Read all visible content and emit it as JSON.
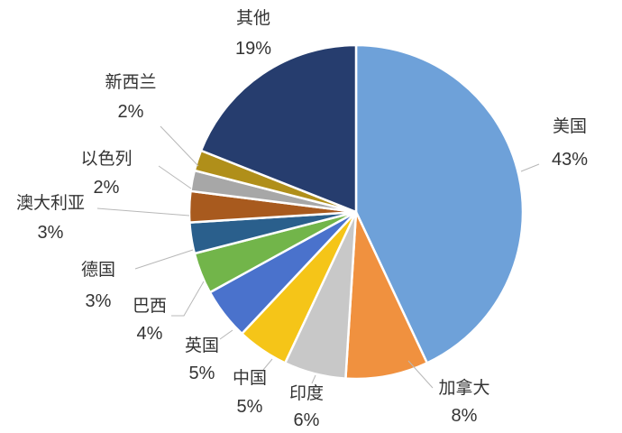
{
  "chart_data": {
    "type": "pie",
    "title": "",
    "slices": [
      {
        "label": "美国",
        "value": 43,
        "value_label": "43%",
        "color": "#6ea1d9"
      },
      {
        "label": "加拿大",
        "value": 8,
        "value_label": "8%",
        "color": "#f0913f"
      },
      {
        "label": "印度",
        "value": 6,
        "value_label": "6%",
        "color": "#c8c8c8"
      },
      {
        "label": "中国",
        "value": 5,
        "value_label": "5%",
        "color": "#f5c518"
      },
      {
        "label": "英国",
        "value": 5,
        "value_label": "5%",
        "color": "#4a72cc"
      },
      {
        "label": "巴西",
        "value": 4,
        "value_label": "4%",
        "color": "#72b54a"
      },
      {
        "label": "德国",
        "value": 3,
        "value_label": "3%",
        "color": "#2a5f8c"
      },
      {
        "label": "澳大利亚",
        "value": 3,
        "value_label": "3%",
        "color": "#a85a1e"
      },
      {
        "label": "以色列",
        "value": 2,
        "value_label": "2%",
        "color": "#a7a7a7"
      },
      {
        "label": "新西兰",
        "value": 2,
        "value_label": "2%",
        "color": "#b08f1a"
      },
      {
        "label": "其他",
        "value": 19,
        "value_label": "19%",
        "color": "#263d6e"
      }
    ]
  }
}
